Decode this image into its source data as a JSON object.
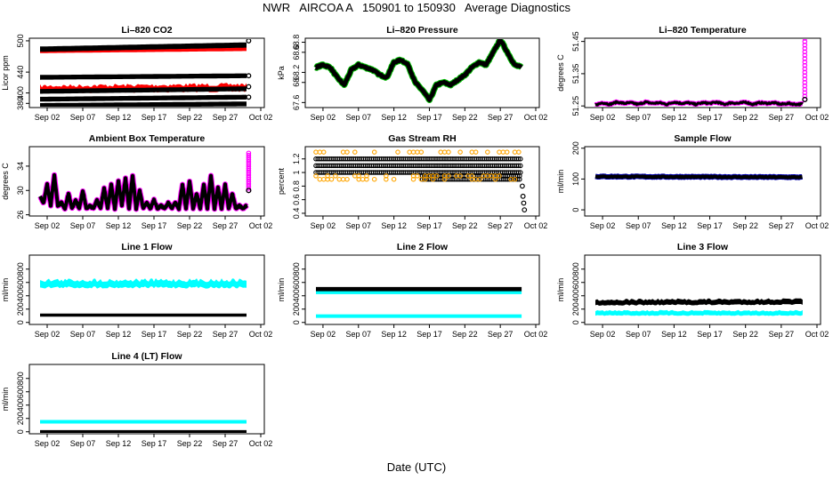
{
  "figure": {
    "title": "NWR   AIRCOA A   150901 to 150930   Average Diagnostics",
    "xlabel": "Date (UTC)"
  },
  "chart_data": [
    {
      "id": "co2",
      "type": "scatter",
      "title": "Li–820 CO2",
      "ylabel": "Licor ppm",
      "x_ticks": [
        "Sep 02",
        "Sep 07",
        "Sep 12",
        "Sep 17",
        "Sep 22",
        "Sep 27",
        "Oct 02"
      ],
      "y_ticks": [
        380,
        400,
        440,
        500
      ],
      "ylim": [
        372,
        505
      ],
      "series": [
        {
          "name": "high",
          "color": "#ff0000",
          "style": "band",
          "x": [
            0,
            29
          ],
          "y": [
            482,
            486
          ],
          "spread": 6
        },
        {
          "name": "high-black",
          "color": "#000000",
          "style": "band",
          "x": [
            0,
            29
          ],
          "y": [
            484,
            492
          ],
          "spread": 5,
          "end": [
            29.3,
            500
          ]
        },
        {
          "name": "mid",
          "color": "#000000",
          "style": "band",
          "x": [
            0,
            29
          ],
          "y": [
            430,
            433
          ],
          "spread": 4,
          "end": [
            29.3,
            433
          ]
        },
        {
          "name": "low-red",
          "color": "#ff0000",
          "style": "noisyband",
          "x": [
            0,
            29
          ],
          "y": [
            407,
            410
          ],
          "spread": 8
        },
        {
          "name": "low-black",
          "color": "#000000",
          "style": "band",
          "x": [
            0,
            29
          ],
          "y": [
            403,
            408
          ],
          "spread": 4,
          "end": [
            29.3,
            412
          ]
        },
        {
          "name": "base",
          "color": "#000000",
          "style": "band",
          "x": [
            0,
            29
          ],
          "y": [
            388,
            392
          ],
          "spread": 4,
          "end": [
            29.3,
            392
          ]
        },
        {
          "name": "floor",
          "color": "#000000",
          "style": "band",
          "x": [
            0,
            29
          ],
          "y": [
            376,
            379
          ],
          "spread": 4
        }
      ]
    },
    {
      "id": "pressure",
      "type": "line",
      "title": "Li–820 Pressure",
      "ylabel": "kPa",
      "x_ticks": [
        "Sep 02",
        "Sep 07",
        "Sep 12",
        "Sep 17",
        "Sep 22",
        "Sep 27",
        "Oct 02"
      ],
      "y_ticks": [
        67.6,
        68.0,
        68.2,
        68.6,
        68.8
      ],
      "ylim": [
        67.5,
        68.88
      ],
      "series": [
        {
          "name": "pressure",
          "color": "#000000",
          "edge": "#00bb00",
          "thick": 5,
          "x": [
            0,
            1,
            2,
            3,
            4,
            5,
            6,
            7,
            8,
            9,
            10,
            11,
            12,
            13,
            14,
            15,
            16,
            17,
            18,
            19,
            20,
            21,
            22,
            23,
            24,
            25,
            26,
            27,
            28,
            29
          ],
          "y": [
            68.3,
            68.35,
            68.3,
            68.1,
            67.95,
            68.25,
            68.35,
            68.3,
            68.25,
            68.15,
            68.1,
            68.4,
            68.45,
            68.35,
            68.0,
            67.85,
            67.65,
            67.95,
            68.0,
            67.95,
            68.05,
            68.15,
            68.3,
            68.4,
            68.35,
            68.6,
            68.85,
            68.6,
            68.35,
            68.3
          ]
        }
      ]
    },
    {
      "id": "licor-temp",
      "type": "line",
      "title": "Li–820 Temperature",
      "ylabel": "degrees C",
      "x_ticks": [
        "Sep 02",
        "Sep 07",
        "Sep 12",
        "Sep 17",
        "Sep 22",
        "Sep 27",
        "Oct 02"
      ],
      "y_ticks": [
        51.25,
        51.35,
        51.45
      ],
      "ylim": [
        51.245,
        51.46
      ],
      "series": [
        {
          "name": "temp",
          "color": "#000000",
          "edge": "#ff00ff",
          "thick": 3,
          "x": [
            0,
            1,
            2,
            3,
            4,
            5,
            6,
            7,
            8,
            9,
            10,
            11,
            12,
            13,
            14,
            15,
            16,
            17,
            18,
            19,
            20,
            21,
            22,
            23,
            24,
            25,
            26,
            27,
            28,
            29
          ],
          "y": [
            51.253,
            51.26,
            51.255,
            51.262,
            51.258,
            51.26,
            51.255,
            51.262,
            51.258,
            51.26,
            51.255,
            51.262,
            51.258,
            51.26,
            51.255,
            51.26,
            51.258,
            51.262,
            51.255,
            51.26,
            51.258,
            51.262,
            51.255,
            51.26,
            51.258,
            51.26,
            51.255,
            51.258,
            51.255,
            51.256
          ],
          "spike": {
            "x": 29.3,
            "y": [
              51.27,
              51.46
            ]
          }
        }
      ]
    },
    {
      "id": "box-temp",
      "type": "line",
      "title": "Ambient Box Temperature",
      "ylabel": "degrees C",
      "x_ticks": [
        "Sep 02",
        "Sep 07",
        "Sep 12",
        "Sep 17",
        "Sep 22",
        "Sep 27",
        "Oct 02"
      ],
      "y_ticks": [
        26,
        30,
        34
      ],
      "ylim": [
        25.8,
        37.2
      ],
      "series": [
        {
          "name": "box",
          "color": "#000000",
          "edge": "#ff00ff",
          "thick": 4,
          "x": [
            0,
            0.5,
            1,
            1.5,
            2,
            2.5,
            3,
            3.5,
            4,
            4.5,
            5,
            5.5,
            6,
            6.5,
            7,
            7.5,
            8,
            8.5,
            9,
            9.5,
            10,
            10.5,
            11,
            11.5,
            12,
            12.5,
            13,
            13.5,
            14,
            14.5,
            15,
            15.5,
            16,
            16.5,
            17,
            17.5,
            18,
            18.5,
            19,
            19.5,
            20,
            20.5,
            21,
            21.5,
            22,
            22.5,
            23,
            23.5,
            24,
            24.5,
            25,
            25.5,
            26,
            26.5,
            27,
            27.5,
            28,
            28.5,
            29
          ],
          "y": [
            29,
            28,
            31,
            27.5,
            32.5,
            27.5,
            28,
            27,
            29.5,
            27,
            28.5,
            27,
            30,
            27,
            27.5,
            27,
            28.5,
            27,
            30.5,
            27,
            31,
            27,
            31.5,
            27.5,
            32,
            27,
            32.5,
            27,
            30,
            27,
            28,
            27,
            28.5,
            27,
            27.5,
            27,
            28,
            27,
            28,
            27,
            31,
            27,
            31.5,
            27,
            29.5,
            27,
            31,
            27,
            32.5,
            27,
            30.5,
            27,
            31,
            27,
            29.5,
            27,
            27.5,
            27,
            27.5
          ],
          "spike": {
            "x": 29.3,
            "y": [
              30,
              36.5
            ]
          }
        }
      ]
    },
    {
      "id": "rh",
      "type": "scatter",
      "title": "Gas Stream RH",
      "ylabel": "percent",
      "x_ticks": [
        "Sep 02",
        "Sep 07",
        "Sep 12",
        "Sep 17",
        "Sep 22",
        "Sep 27",
        "Oct 02"
      ],
      "y_ticks": [
        0.4,
        0.6,
        0.8,
        1.0,
        1.2
      ],
      "ylim": [
        0.36,
        1.38
      ],
      "series": [
        {
          "name": "rh-black",
          "color": "#000000",
          "style": "levels",
          "levels": [
            1.2,
            1.1,
            1.0
          ],
          "x": [
            0,
            29
          ]
        },
        {
          "name": "rh-black-late",
          "color": "#000000",
          "style": "levels",
          "levels": [
            0.95,
            0.9
          ],
          "x": [
            15,
            29
          ]
        },
        {
          "name": "rh-orange",
          "color": "#ffa500",
          "style": "levels",
          "levels": [
            1.3,
            0.95,
            0.9
          ],
          "x": [
            0,
            29
          ],
          "sparse": true
        },
        {
          "name": "rh-drop",
          "color": "#000000",
          "style": "points",
          "x": [
            29.1,
            29.2,
            29.3,
            29.4
          ],
          "y": [
            0.8,
            0.65,
            0.55,
            0.45
          ]
        }
      ]
    },
    {
      "id": "sample-flow",
      "type": "line",
      "title": "Sample Flow",
      "ylabel": "ml/min",
      "x_ticks": [
        "Sep 02",
        "Sep 07",
        "Sep 12",
        "Sep 17",
        "Sep 22",
        "Sep 27",
        "Oct 02"
      ],
      "y_ticks": [
        0,
        100,
        200
      ],
      "ylim": [
        -20,
        205
      ],
      "series": [
        {
          "name": "sample",
          "color": "#000000",
          "edge": "#0000aa",
          "thick": 4,
          "x": [
            0,
            29
          ],
          "y": [
            108,
            106
          ]
        }
      ]
    },
    {
      "id": "line1",
      "type": "scatter",
      "title": "Line 1 Flow",
      "ylabel": "ml/min",
      "x_ticks": [
        "Sep 02",
        "Sep 07",
        "Sep 12",
        "Sep 17",
        "Sep 22",
        "Sep 27",
        "Oct 02"
      ],
      "y_ticks": [
        0,
        200,
        400,
        600,
        800
      ],
      "ylim": [
        -30,
        1010
      ],
      "series": [
        {
          "name": "line1-cyan",
          "color": "#00ffff",
          "style": "noisyband",
          "x": [
            0,
            29
          ],
          "y": [
            580,
            580
          ],
          "spread": 70
        },
        {
          "name": "line1-black",
          "color": "#000000",
          "style": "band",
          "x": [
            0,
            29
          ],
          "y": [
            110,
            110
          ],
          "spread": 8
        }
      ]
    },
    {
      "id": "line2",
      "type": "scatter",
      "title": "Line 2 Flow",
      "ylabel": "ml/min",
      "x_ticks": [
        "Sep 02",
        "Sep 07",
        "Sep 12",
        "Sep 17",
        "Sep 22",
        "Sep 27",
        "Oct 02"
      ],
      "y_ticks": [
        0,
        200,
        400,
        600,
        800
      ],
      "ylim": [
        -30,
        1010
      ],
      "series": [
        {
          "name": "line2-cyan-hi",
          "color": "#00ffff",
          "style": "band",
          "x": [
            0,
            29
          ],
          "y": [
            450,
            450
          ],
          "spread": 10
        },
        {
          "name": "line2-black",
          "color": "#000000",
          "style": "band",
          "x": [
            0,
            29
          ],
          "y": [
            500,
            500
          ],
          "spread": 22
        },
        {
          "name": "line2-cyan-lo",
          "color": "#00ffff",
          "style": "band",
          "x": [
            0,
            29
          ],
          "y": [
            95,
            95
          ],
          "spread": 14
        }
      ]
    },
    {
      "id": "line3",
      "type": "scatter",
      "title": "Line 3 Flow",
      "ylabel": "ml/min",
      "x_ticks": [
        "Sep 02",
        "Sep 07",
        "Sep 12",
        "Sep 17",
        "Sep 22",
        "Sep 27",
        "Oct 02"
      ],
      "y_ticks": [
        0,
        200,
        400,
        600,
        800
      ],
      "ylim": [
        -30,
        1010
      ],
      "series": [
        {
          "name": "line3-cyan",
          "color": "#00ffff",
          "style": "noisyband",
          "x": [
            0,
            29
          ],
          "y": [
            140,
            140
          ],
          "spread": 30
        },
        {
          "name": "line3-black",
          "color": "#000000",
          "style": "noisyband",
          "x": [
            0,
            29
          ],
          "y": [
            300,
            310
          ],
          "spread": 40
        }
      ]
    },
    {
      "id": "line4",
      "type": "scatter",
      "title": "Line 4 (LT) Flow",
      "ylabel": "ml/min",
      "x_ticks": [
        "Sep 02",
        "Sep 07",
        "Sep 12",
        "Sep 17",
        "Sep 22",
        "Sep 27",
        "Oct 02"
      ],
      "y_ticks": [
        0,
        200,
        400,
        600,
        800
      ],
      "ylim": [
        -30,
        1010
      ],
      "series": [
        {
          "name": "line4-cyan",
          "color": "#00ffff",
          "style": "band",
          "x": [
            0,
            29
          ],
          "y": [
            150,
            150
          ],
          "spread": 14
        },
        {
          "name": "line4-black",
          "color": "#000000",
          "style": "band",
          "x": [
            0,
            29
          ],
          "y": [
            0,
            0
          ],
          "spread": 10
        }
      ]
    }
  ]
}
